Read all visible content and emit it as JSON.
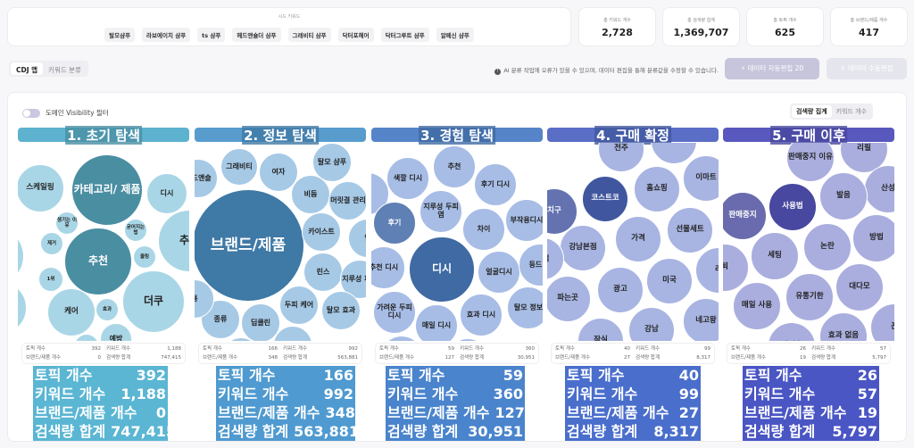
{
  "seed": {
    "title": "시드 키워드",
    "keywords": [
      "탈모샴푸",
      "라보에이치 샴푸",
      "ts 샴푸",
      "헤드앤숄더 샴푸",
      "그래비티 샴푸",
      "닥터포헤어",
      "닥터그루트 샴푸",
      "알페신 샴푸"
    ]
  },
  "stats": [
    {
      "label": "총 키워드 개수",
      "value": "2,728"
    },
    {
      "label": "총 검색량 합계",
      "value": "1,369,707"
    },
    {
      "label": "총 토픽 개수",
      "value": "625"
    },
    {
      "label": "총 브랜드/제품 개수",
      "value": "417"
    }
  ],
  "tabs": [
    "CDJ 맵",
    "키워드 분류"
  ],
  "info": "AI 분류 작업에 오류가 있을 수 있으며, 데이터 편집을 통해 분류값을 수정할 수 있습니다.",
  "buttons": {
    "auto_edit": "⚡ 데이터 자동편집 20",
    "manual_edit": "⇪ 데이터 수동편집"
  },
  "toggle_label": "도메인 Visibility 필터",
  "segment": [
    "검색량 집계",
    "키워드 개수"
  ],
  "summary_labels": [
    "토픽 개수",
    "키워드 개수",
    "브랜드/제품 개수",
    "검색량 합계"
  ],
  "colors": {
    "header": [
      "#5db2cf",
      "#579ccd",
      "#5584c8",
      "#5a6ec6",
      "#5858be"
    ],
    "light": [
      "#a9d6e6",
      "#a6c9e6",
      "#a7bde6",
      "#a8b4e2",
      "#aaaede"
    ],
    "dark": [
      "#4a8ea2",
      "#3f79a5",
      "#3f6aa3",
      "#40579f",
      "#4848a0"
    ],
    "mid": [
      "#7ab4c8",
      "#6f9ec8",
      "#5f80b4",
      "#6472b0",
      "#6a6aae"
    ],
    "overlay": [
      "#5ab6d3",
      "#4f9ad0",
      "#4a84cc",
      "#4a6ecc",
      "#4a56c4"
    ]
  },
  "columns": [
    {
      "title": "1. 초기 탐색",
      "bubbles": [
        "스케일링",
        "카테고리/ 제품",
        "디시",
        "생기는 이유",
        "굳어지는 법",
        "제거",
        "량",
        "추천",
        "쿨링",
        "추천",
        "1위",
        "더쿠",
        "풋",
        "케어",
        "효과",
        "예방",
        "없애는 법"
      ],
      "topics": "392",
      "keywords": "1,188",
      "brands": "0",
      "volume": "747,415"
    },
    {
      "title": "2. 정보 탐색",
      "bubbles": [
        "브랜드/제품",
        "그래비티",
        "여자",
        "탈모 샴푸",
        "헤드앤숄",
        "비듬",
        "머릿결 관리",
        "카이스트",
        "염",
        "린스",
        "지루성 피염",
        "두피 케어",
        "탈모 효과",
        "종류",
        "딥클린",
        "성분",
        "려",
        "용"
      ],
      "topics": "166",
      "keywords": "992",
      "brands": "348",
      "volume": "563,881"
    },
    {
      "title": "3. 경험 탐색",
      "bubbles": [
        "추천",
        "색깔 디시",
        "후기 디시",
        "",
        "후기",
        "지루성 두피염",
        "차이",
        "부작용디시",
        "디시",
        "추천 디시",
        "얼굴디시",
        "등드 디",
        "가려운 두피디시",
        "매일 디시",
        "효과 디시",
        "탈모 정보",
        "샴푸",
        "비교"
      ],
      "topics": "59",
      "keywords": "360",
      "brands": "127",
      "volume": "30,951"
    },
    {
      "title": "4. 구매 확정",
      "bubbles": [
        "전주",
        "",
        "이마트",
        "홈쇼핑",
        "코스트코",
        "치구",
        "선물세트",
        "가격",
        "강남본점",
        "본점",
        "미국",
        "광고",
        "라",
        "파는곳",
        "네고왕",
        "강남",
        "잠실"
      ],
      "topics": "40",
      "keywords": "99",
      "brands": "27",
      "volume": "8,317"
    },
    {
      "title": "5. 구매 이후",
      "bubbles": [
        "판매중지 이유",
        "리필",
        "산성",
        "발음",
        "사용법",
        "판매중지",
        "방법",
        "논란",
        "세팅",
        "퇴",
        "대다모",
        "유통기한",
        "매일 사용",
        "끈",
        "효과 없음",
        "가려움"
      ],
      "topics": "26",
      "keywords": "57",
      "brands": "19",
      "volume": "5,797"
    }
  ]
}
